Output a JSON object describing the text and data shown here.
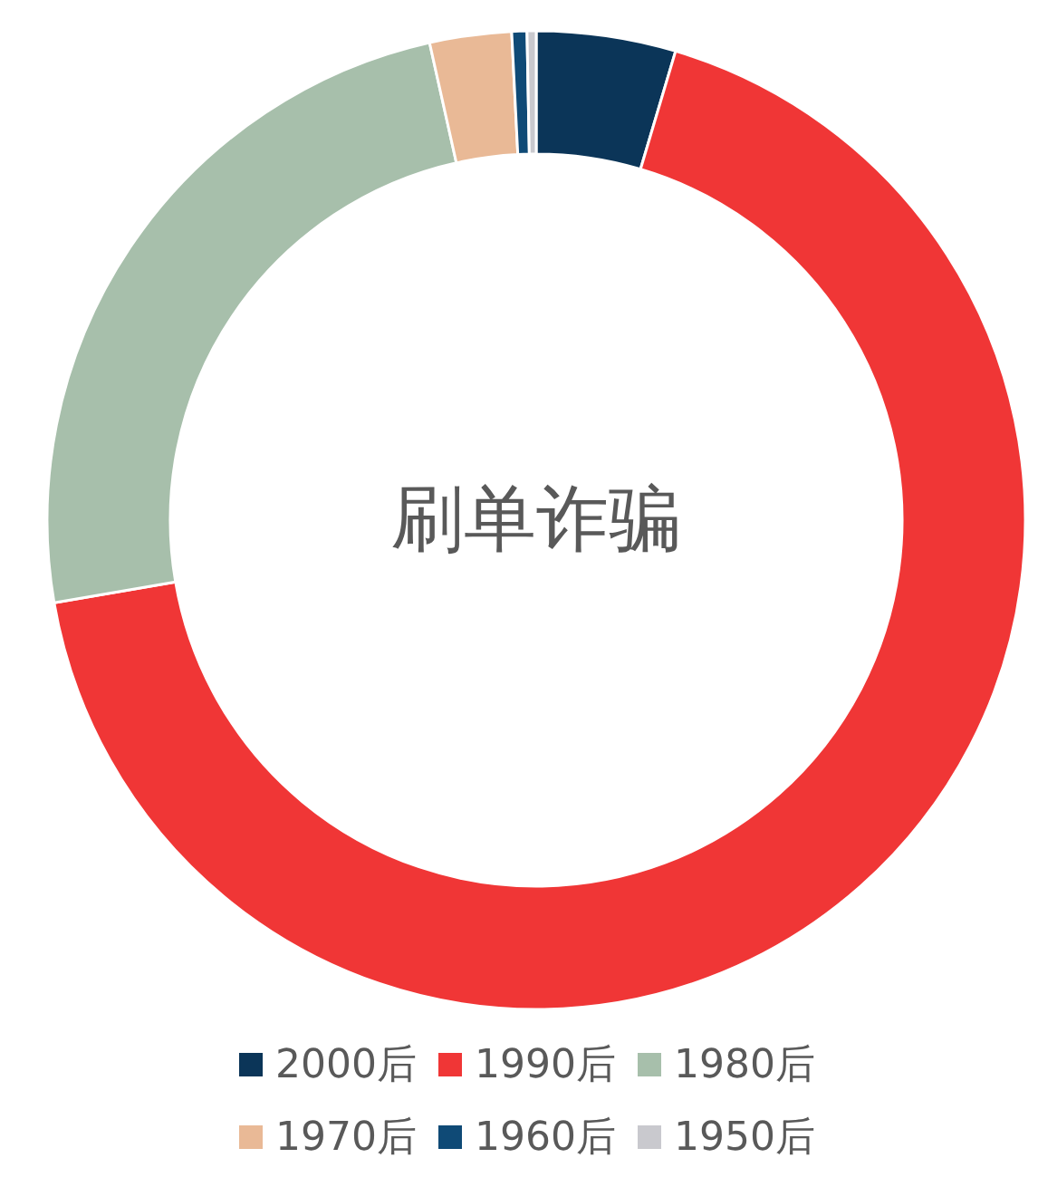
{
  "chart_data": {
    "type": "donut",
    "title": "刷单诈骗",
    "categories": [
      "2000后",
      "1990后",
      "1980后",
      "1970后",
      "1960后",
      "1950后"
    ],
    "values": [
      4.6,
      67.7,
      24.2,
      2.7,
      0.5,
      0.3
    ],
    "colors": [
      "#0b3558",
      "#f03636",
      "#a7bfab",
      "#e9b996",
      "#0f4a76",
      "#c9c9ce"
    ],
    "legend": "bottom"
  }
}
